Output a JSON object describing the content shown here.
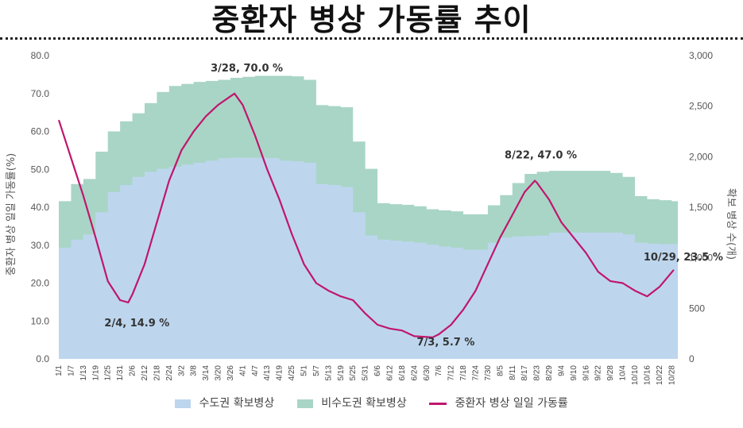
{
  "header": {
    "title": "중환자 병상 가동률 추이"
  },
  "colors": {
    "capital": "#bdd6ee",
    "noncapital": "#a9d5c6",
    "rate": "#c0166e"
  },
  "chart_data": {
    "type": "area",
    "title": "중환자 병상 가동률 추이",
    "ylabel_left": "중환자 병상 일일 가동률(%)",
    "ylabel_right": "확보 병상 수(개)",
    "ylim_left": [
      0,
      80
    ],
    "ylim_right": [
      0,
      3000
    ],
    "left_ticks": [
      "0.0",
      "10.0",
      "20.0",
      "30.0",
      "40.0",
      "50.0",
      "60.0",
      "70.0",
      "80.0"
    ],
    "right_ticks": [
      "0",
      "500",
      "1,000",
      "1,500",
      "2,000",
      "2,500",
      "3,000"
    ],
    "x_ticks": [
      "1/1",
      "1/7",
      "1/13",
      "1/19",
      "1/25",
      "1/31",
      "2/6",
      "2/12",
      "2/18",
      "2/24",
      "3/2",
      "3/8",
      "3/14",
      "3/20",
      "3/26",
      "4/1",
      "4/7",
      "4/13",
      "4/19",
      "4/25",
      "5/1",
      "5/7",
      "5/13",
      "5/19",
      "5/25",
      "5/31",
      "6/6",
      "6/12",
      "6/18",
      "6/24",
      "6/30",
      "7/6",
      "7/12",
      "7/18",
      "7/24",
      "7/30",
      "8/5",
      "8/11",
      "8/17",
      "8/23",
      "8/29",
      "9/4",
      "9/10",
      "9/16",
      "9/22",
      "9/28",
      "10/4",
      "10/10",
      "10/16",
      "10/22",
      "10/28"
    ],
    "series": [
      {
        "name": "수도권 확보병상",
        "axis": "right",
        "points": [
          {
            "x": "1/1",
            "y": 1100
          },
          {
            "x": "1/7",
            "y": 1180
          },
          {
            "x": "1/13",
            "y": 1230
          },
          {
            "x": "1/19",
            "y": 1450
          },
          {
            "x": "1/25",
            "y": 1650
          },
          {
            "x": "1/31",
            "y": 1720
          },
          {
            "x": "2/6",
            "y": 1800
          },
          {
            "x": "2/12",
            "y": 1850
          },
          {
            "x": "2/18",
            "y": 1880
          },
          {
            "x": "2/24",
            "y": 1900
          },
          {
            "x": "3/2",
            "y": 1920
          },
          {
            "x": "3/8",
            "y": 1940
          },
          {
            "x": "3/14",
            "y": 1960
          },
          {
            "x": "3/20",
            "y": 1985
          },
          {
            "x": "3/26",
            "y": 1990
          },
          {
            "x": "4/1",
            "y": 1990
          },
          {
            "x": "4/7",
            "y": 1990
          },
          {
            "x": "4/13",
            "y": 1985
          },
          {
            "x": "4/19",
            "y": 1960
          },
          {
            "x": "4/25",
            "y": 1955
          },
          {
            "x": "5/1",
            "y": 1940
          },
          {
            "x": "5/7",
            "y": 1730
          },
          {
            "x": "5/13",
            "y": 1720
          },
          {
            "x": "5/19",
            "y": 1700
          },
          {
            "x": "5/25",
            "y": 1450
          },
          {
            "x": "5/31",
            "y": 1220
          },
          {
            "x": "6/6",
            "y": 1180
          },
          {
            "x": "6/12",
            "y": 1170
          },
          {
            "x": "6/18",
            "y": 1160
          },
          {
            "x": "6/24",
            "y": 1150
          },
          {
            "x": "6/30",
            "y": 1130
          },
          {
            "x": "7/6",
            "y": 1110
          },
          {
            "x": "7/12",
            "y": 1100
          },
          {
            "x": "7/18",
            "y": 1080
          },
          {
            "x": "7/24",
            "y": 1080
          },
          {
            "x": "7/30",
            "y": 1150
          },
          {
            "x": "8/5",
            "y": 1200
          },
          {
            "x": "8/11",
            "y": 1210
          },
          {
            "x": "8/17",
            "y": 1215
          },
          {
            "x": "8/23",
            "y": 1220
          },
          {
            "x": "8/29",
            "y": 1250
          },
          {
            "x": "9/4",
            "y": 1250
          },
          {
            "x": "9/10",
            "y": 1250
          },
          {
            "x": "9/16",
            "y": 1250
          },
          {
            "x": "9/22",
            "y": 1250
          },
          {
            "x": "9/28",
            "y": 1250
          },
          {
            "x": "10/4",
            "y": 1230
          },
          {
            "x": "10/10",
            "y": 1150
          },
          {
            "x": "10/16",
            "y": 1140
          },
          {
            "x": "10/22",
            "y": 1135
          },
          {
            "x": "10/28",
            "y": 1135
          }
        ]
      },
      {
        "name": "비수도권 확보병상",
        "axis": "right",
        "note_stacked_total": true,
        "points": [
          {
            "x": "1/1",
            "y": 1560
          },
          {
            "x": "1/7",
            "y": 1730
          },
          {
            "x": "1/13",
            "y": 1780
          },
          {
            "x": "1/19",
            "y": 2050
          },
          {
            "x": "1/25",
            "y": 2250
          },
          {
            "x": "1/31",
            "y": 2350
          },
          {
            "x": "2/6",
            "y": 2430
          },
          {
            "x": "2/12",
            "y": 2530
          },
          {
            "x": "2/18",
            "y": 2640
          },
          {
            "x": "2/24",
            "y": 2700
          },
          {
            "x": "3/2",
            "y": 2720
          },
          {
            "x": "3/8",
            "y": 2740
          },
          {
            "x": "3/14",
            "y": 2750
          },
          {
            "x": "3/20",
            "y": 2760
          },
          {
            "x": "3/26",
            "y": 2780
          },
          {
            "x": "4/1",
            "y": 2790
          },
          {
            "x": "4/7",
            "y": 2800
          },
          {
            "x": "4/13",
            "y": 2800
          },
          {
            "x": "4/19",
            "y": 2800
          },
          {
            "x": "4/25",
            "y": 2795
          },
          {
            "x": "5/1",
            "y": 2760
          },
          {
            "x": "5/7",
            "y": 2510
          },
          {
            "x": "5/13",
            "y": 2500
          },
          {
            "x": "5/19",
            "y": 2490
          },
          {
            "x": "5/25",
            "y": 2150
          },
          {
            "x": "5/31",
            "y": 1880
          },
          {
            "x": "6/6",
            "y": 1540
          },
          {
            "x": "6/12",
            "y": 1530
          },
          {
            "x": "6/18",
            "y": 1525
          },
          {
            "x": "6/24",
            "y": 1510
          },
          {
            "x": "6/30",
            "y": 1480
          },
          {
            "x": "7/6",
            "y": 1470
          },
          {
            "x": "7/12",
            "y": 1460
          },
          {
            "x": "7/18",
            "y": 1430
          },
          {
            "x": "7/24",
            "y": 1430
          },
          {
            "x": "7/30",
            "y": 1520
          },
          {
            "x": "8/5",
            "y": 1620
          },
          {
            "x": "8/11",
            "y": 1740
          },
          {
            "x": "8/17",
            "y": 1830
          },
          {
            "x": "8/23",
            "y": 1850
          },
          {
            "x": "8/29",
            "y": 1860
          },
          {
            "x": "9/4",
            "y": 1860
          },
          {
            "x": "9/10",
            "y": 1860
          },
          {
            "x": "9/16",
            "y": 1860
          },
          {
            "x": "9/22",
            "y": 1860
          },
          {
            "x": "9/28",
            "y": 1840
          },
          {
            "x": "10/4",
            "y": 1800
          },
          {
            "x": "10/10",
            "y": 1610
          },
          {
            "x": "10/16",
            "y": 1580
          },
          {
            "x": "10/22",
            "y": 1570
          },
          {
            "x": "10/28",
            "y": 1560
          }
        ]
      },
      {
        "name": "중환자 병상 일일 가동률",
        "axis": "left",
        "type": "line",
        "points": [
          {
            "x": "1/1",
            "y": 63.0
          },
          {
            "x": "1/7",
            "y": 53.0
          },
          {
            "x": "1/13",
            "y": 43.0
          },
          {
            "x": "1/19",
            "y": 32.0
          },
          {
            "x": "1/25",
            "y": 20.5
          },
          {
            "x": "1/31",
            "y": 15.5
          },
          {
            "x": "2/4",
            "y": 14.9
          },
          {
            "x": "2/6",
            "y": 17.0
          },
          {
            "x": "2/12",
            "y": 25.0
          },
          {
            "x": "2/18",
            "y": 36.0
          },
          {
            "x": "2/24",
            "y": 47.0
          },
          {
            "x": "3/2",
            "y": 55.0
          },
          {
            "x": "3/8",
            "y": 60.0
          },
          {
            "x": "3/14",
            "y": 64.0
          },
          {
            "x": "3/20",
            "y": 67.0
          },
          {
            "x": "3/28",
            "y": 70.0
          },
          {
            "x": "4/1",
            "y": 67.0
          },
          {
            "x": "4/7",
            "y": 59.0
          },
          {
            "x": "4/13",
            "y": 50.0
          },
          {
            "x": "4/19",
            "y": 42.0
          },
          {
            "x": "4/25",
            "y": 33.0
          },
          {
            "x": "5/1",
            "y": 25.0
          },
          {
            "x": "5/7",
            "y": 20.0
          },
          {
            "x": "5/13",
            "y": 18.0
          },
          {
            "x": "5/19",
            "y": 16.5
          },
          {
            "x": "5/25",
            "y": 15.5
          },
          {
            "x": "5/31",
            "y": 12.0
          },
          {
            "x": "6/6",
            "y": 9.0
          },
          {
            "x": "6/12",
            "y": 8.0
          },
          {
            "x": "6/18",
            "y": 7.5
          },
          {
            "x": "6/24",
            "y": 6.0
          },
          {
            "x": "6/30",
            "y": 5.8
          },
          {
            "x": "7/3",
            "y": 5.7
          },
          {
            "x": "7/6",
            "y": 6.5
          },
          {
            "x": "7/12",
            "y": 9.0
          },
          {
            "x": "7/18",
            "y": 13.0
          },
          {
            "x": "7/24",
            "y": 18.0
          },
          {
            "x": "7/30",
            "y": 25.0
          },
          {
            "x": "8/5",
            "y": 32.0
          },
          {
            "x": "8/11",
            "y": 38.0
          },
          {
            "x": "8/17",
            "y": 44.0
          },
          {
            "x": "8/22",
            "y": 47.0
          },
          {
            "x": "8/23",
            "y": 46.5
          },
          {
            "x": "8/29",
            "y": 42.0
          },
          {
            "x": "9/4",
            "y": 36.0
          },
          {
            "x": "9/10",
            "y": 32.0
          },
          {
            "x": "9/16",
            "y": 28.0
          },
          {
            "x": "9/22",
            "y": 23.0
          },
          {
            "x": "9/28",
            "y": 20.5
          },
          {
            "x": "10/4",
            "y": 20.0
          },
          {
            "x": "10/10",
            "y": 18.0
          },
          {
            "x": "10/16",
            "y": 16.5
          },
          {
            "x": "10/22",
            "y": 19.0
          },
          {
            "x": "10/29",
            "y": 23.5
          }
        ]
      }
    ],
    "annotations": [
      {
        "x": "2/4",
        "y": 14.9,
        "label": "2/4, 14.9 %"
      },
      {
        "x": "3/28",
        "y": 70.0,
        "label": "3/28, 70.0 %"
      },
      {
        "x": "7/3",
        "y": 5.7,
        "label": "7/3, 5.7 %"
      },
      {
        "x": "8/22",
        "y": 47.0,
        "label": "8/22, 47.0 %"
      },
      {
        "x": "10/29",
        "y": 23.5,
        "label": "10/29, 23.5 %"
      }
    ],
    "legend": [
      "수도권 확보병상",
      "비수도권 확보병상",
      "중환자 병상 일일 가동률"
    ],
    "legend_position": "bottom",
    "grid": false
  }
}
